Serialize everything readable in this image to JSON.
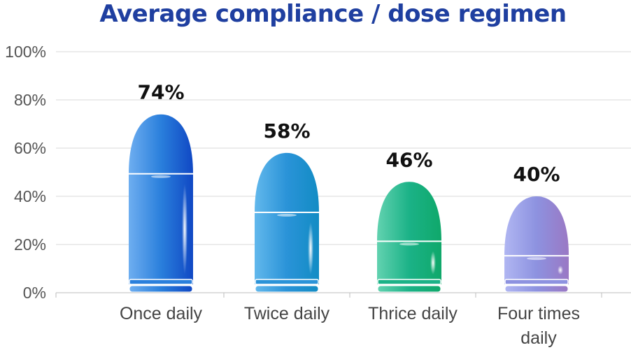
{
  "chart_data": {
    "type": "bar",
    "title": "Average compliance / dose regimen",
    "categories": [
      [
        "Once daily"
      ],
      [
        "Twice daily"
      ],
      [
        "Thrice daily"
      ],
      [
        "Four times",
        "daily"
      ]
    ],
    "values": [
      74,
      58,
      46,
      40
    ],
    "value_labels": [
      "74%",
      "58%",
      "46%",
      "40%"
    ],
    "y_ticks": [
      0,
      20,
      40,
      60,
      80,
      100
    ],
    "y_tick_labels": [
      "0%",
      "20%",
      "40%",
      "60%",
      "80%",
      "100%"
    ],
    "ylim": [
      0,
      100
    ],
    "grid": true,
    "bar_colors": [
      {
        "light": "#6eaef0",
        "main": "#2a7fdc",
        "dark": "#1048c4"
      },
      {
        "light": "#62b8ec",
        "main": "#2a93d8",
        "dark": "#128cc4"
      },
      {
        "light": "#62d2b0",
        "main": "#1bb287",
        "dark": "#0fa86a"
      },
      {
        "light": "#b0b6f2",
        "main": "#8d92e0",
        "dark": "#9a78c4"
      }
    ]
  }
}
